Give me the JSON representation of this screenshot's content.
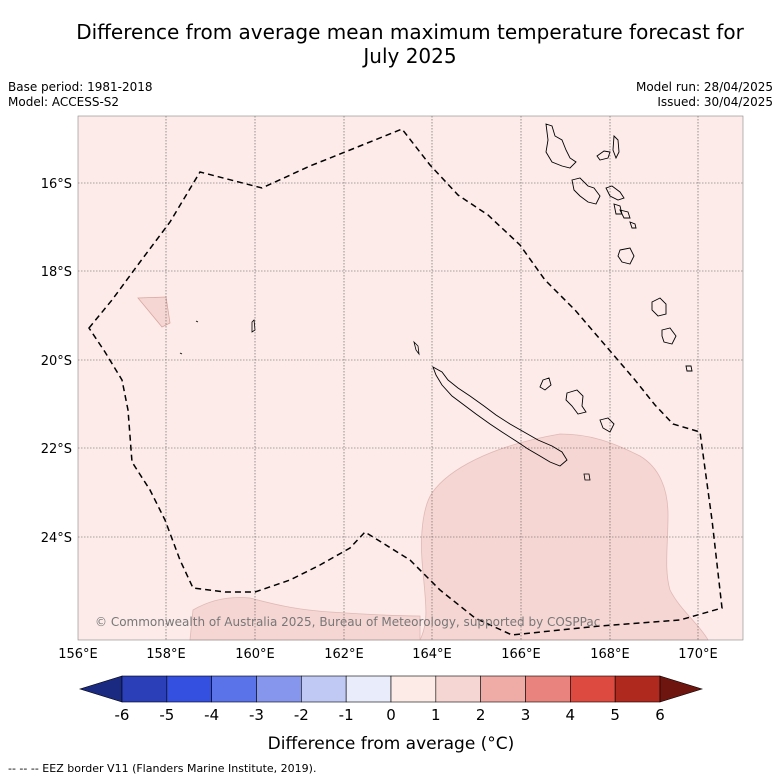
{
  "title_line1": "Difference from average mean maximum temperature forecast for",
  "title_line2": "July 2025",
  "meta": {
    "base_period": "Base period: 1981-2018",
    "model": "Model: ACCESS-S2",
    "model_run": "Model run: 28/04/2025",
    "issued": "Issued: 30/04/2025"
  },
  "map": {
    "lat_labels": [
      "16°S",
      "18°S",
      "20°S",
      "22°S",
      "24°S"
    ],
    "lon_labels": [
      "156°E",
      "158°E",
      "160°E",
      "162°E",
      "164°E",
      "166°E",
      "168°E",
      "170°E"
    ],
    "copyright": "© Commonwealth of Australia 2025, Bureau of Meteorology, supported by COSPPac",
    "colors": {
      "background_anomaly": "#fcebe9",
      "warm_anomaly": "#f5d6d3",
      "eez_border": "#000000"
    }
  },
  "colorbar": {
    "ticks": [
      "-6",
      "-5",
      "-4",
      "-3",
      "-2",
      "-1",
      "0",
      "1",
      "2",
      "3",
      "4",
      "5",
      "6"
    ],
    "colors": [
      "#1a2a80",
      "#2a3fb8",
      "#3450e0",
      "#5a73e8",
      "#8696ec",
      "#c0c8f4",
      "#e8ecfb",
      "#fcebe6",
      "#f5d6d3",
      "#efaca7",
      "#e8847d",
      "#dd4a40",
      "#b0291f",
      "#6e1510"
    ],
    "title": "Difference from average (°C)"
  },
  "legend_note": "-- -- -- EEZ border V11 (Flanders Marine Institute, 2019)."
}
